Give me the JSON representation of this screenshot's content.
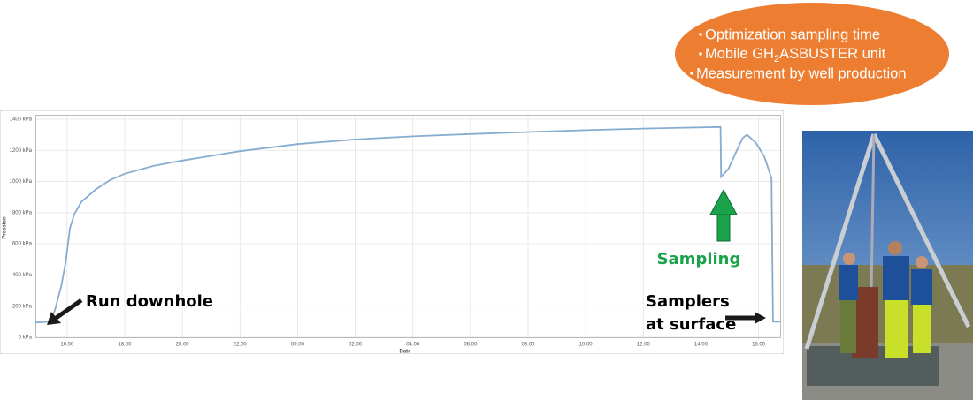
{
  "chart_data": {
    "type": "line",
    "xlabel": "Date",
    "ylabel": "Pression",
    "x": [
      14.9,
      15.2,
      15.45,
      15.6,
      15.8,
      15.95,
      16.1,
      16.25,
      16.5,
      17.0,
      17.5,
      18.0,
      19.0,
      20.0,
      22.0,
      24.0,
      26.0,
      28.0,
      30.0,
      32.0,
      34.0,
      36.0,
      38.68,
      38.7,
      38.95,
      39.25,
      39.45,
      39.6,
      39.9,
      40.2,
      40.45,
      40.5,
      40.75
    ],
    "values": [
      95,
      97,
      105,
      190,
      330,
      480,
      700,
      790,
      870,
      950,
      1010,
      1050,
      1100,
      1135,
      1195,
      1240,
      1270,
      1290,
      1305,
      1318,
      1330,
      1340,
      1350,
      1030,
      1080,
      1200,
      1280,
      1300,
      1250,
      1160,
      1020,
      100,
      100
    ],
    "color": "#86acd0",
    "xlim": [
      14.9,
      40.75
    ],
    "xticks": [
      {
        "value": 16,
        "label": "16:00"
      },
      {
        "value": 18,
        "label": "18:00"
      },
      {
        "value": 20,
        "label": "20:00"
      },
      {
        "value": 22,
        "label": "22:00"
      },
      {
        "value": 24,
        "label": "00:00"
      },
      {
        "value": 26,
        "label": "02:00"
      },
      {
        "value": 28,
        "label": "04:00"
      },
      {
        "value": 30,
        "label": "06:00"
      },
      {
        "value": 32,
        "label": "08:00"
      },
      {
        "value": 34,
        "label": "10:00"
      },
      {
        "value": 36,
        "label": "12:00"
      },
      {
        "value": 38,
        "label": "14:00"
      },
      {
        "value": 40,
        "label": "16:00"
      }
    ],
    "ylim": [
      0,
      1400
    ],
    "yticks": [
      {
        "value": 0,
        "label": "0 kPa"
      },
      {
        "value": 200,
        "label": "200 kPa"
      },
      {
        "value": 400,
        "label": "400 kPa"
      },
      {
        "value": 600,
        "label": "600 kPa"
      },
      {
        "value": 800,
        "label": "800 kPa"
      },
      {
        "value": 1000,
        "label": "1000 kPa"
      },
      {
        "value": 1200,
        "label": "1200 kPa"
      },
      {
        "value": 1400,
        "label": "1400 kPa"
      }
    ],
    "grid": true,
    "annotations": {
      "run": "Run downhole",
      "sampling": "Sampling",
      "samplers": "Samplers",
      "surface": "at surface"
    }
  },
  "callout": {
    "bullets": [
      {
        "text": "Optimization sampling time"
      },
      {
        "before": "Mobile GH",
        "sub": "2",
        "after": "ASBUSTER unit"
      },
      {
        "text": "Measurement by well production"
      }
    ]
  }
}
